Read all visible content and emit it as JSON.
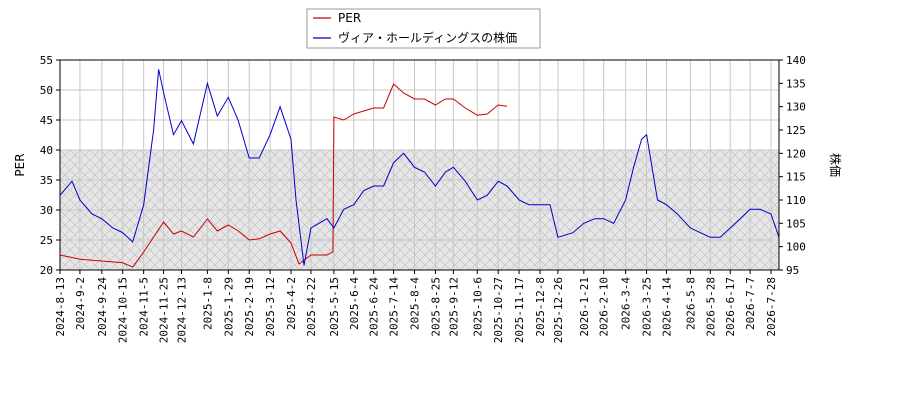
{
  "chart_data": {
    "type": "line",
    "legend": {
      "placement": "top-center",
      "entries": [
        {
          "name": "PER",
          "color": "#cc0000"
        },
        {
          "name": "ヴィア・ホールディングスの株価",
          "color": "#0000cc"
        }
      ]
    },
    "ylabel_left": "PER",
    "ylabel_right": "株価",
    "ylim_left": [
      20,
      55
    ],
    "ylim_right": [
      95,
      140
    ],
    "yticks_left": [
      "20",
      "25",
      "30",
      "35",
      "40",
      "45",
      "50",
      "55"
    ],
    "yticks_right": [
      "95",
      "100",
      "105",
      "110",
      "115",
      "120",
      "125",
      "130",
      "135",
      "140"
    ],
    "shaded_band_left": [
      20,
      40
    ],
    "grid": true,
    "x_dates": [
      "2024-8-13",
      "2024-9-2",
      "2024-9-24",
      "2024-10-15",
      "2024-11-5",
      "2024-11-25",
      "2024-12-13",
      "2025-1-8",
      "2025-1-29",
      "2025-2-19",
      "2025-3-12",
      "2025-4-2",
      "2025-4-22",
      "2025-5-15",
      "2025-6-4",
      "2025-6-24",
      "2025-7-14",
      "2025-8-4",
      "2025-8-25",
      "2025-9-12",
      "2025-10-6",
      "2025-10-27",
      "2025-11-17",
      "2025-12-8",
      "2025-12-26",
      "2026-1-21",
      "2026-2-10",
      "2026-3-4",
      "2026-3-25",
      "2026-4-14",
      "2026-5-8",
      "2026-5-28",
      "2026-6-17",
      "2026-7-7",
      "2026-7-28"
    ],
    "series": [
      {
        "name": "PER",
        "axis": "left",
        "color": "#cc0000",
        "x": [
          "2024-8-13",
          "2024-9-2",
          "2024-9-24",
          "2024-10-15",
          "2024-10-25",
          "2024-11-5",
          "2024-11-15",
          "2024-11-25",
          "2024-12-5",
          "2024-12-13",
          "2024-12-25",
          "2025-1-8",
          "2025-1-18",
          "2025-1-29",
          "2025-2-8",
          "2025-2-19",
          "2025-3-1",
          "2025-3-12",
          "2025-3-22",
          "2025-4-2",
          "2025-4-10",
          "2025-4-22",
          "2025-5-8",
          "2025-5-14",
          "2025-5-15",
          "2025-5-25",
          "2025-6-4",
          "2025-6-14",
          "2025-6-24",
          "2025-7-4",
          "2025-7-14",
          "2025-7-24",
          "2025-8-4",
          "2025-8-14",
          "2025-8-25",
          "2025-9-4",
          "2025-9-12",
          "2025-9-24",
          "2025-10-6",
          "2025-10-16",
          "2025-10-27",
          "2025-11-5"
        ],
        "values": [
          22.5,
          21.8,
          21.5,
          21.2,
          20.5,
          23.0,
          25.5,
          28.0,
          26.0,
          26.5,
          25.5,
          28.5,
          26.5,
          27.5,
          26.5,
          25.0,
          25.2,
          26.0,
          26.5,
          24.5,
          21.0,
          22.5,
          22.5,
          23.0,
          45.5,
          45.0,
          46.0,
          46.5,
          47.0,
          47.0,
          51.0,
          49.5,
          48.5,
          48.5,
          47.5,
          48.5,
          48.5,
          47.0,
          45.8,
          46.0,
          47.5,
          47.3
        ]
      },
      {
        "name": "ヴィア・ホールディングスの株価",
        "axis": "right",
        "color": "#0000cc",
        "x": [
          "2024-8-13",
          "2024-8-25",
          "2024-9-2",
          "2024-9-14",
          "2024-9-24",
          "2024-10-5",
          "2024-10-15",
          "2024-10-25",
          "2024-11-5",
          "2024-11-15",
          "2024-11-20",
          "2024-11-25",
          "2024-12-5",
          "2024-12-13",
          "2024-12-25",
          "2025-1-8",
          "2025-1-18",
          "2025-1-29",
          "2025-2-8",
          "2025-2-19",
          "2025-3-1",
          "2025-3-12",
          "2025-3-22",
          "2025-4-2",
          "2025-4-7",
          "2025-4-15",
          "2025-4-22",
          "2025-5-8",
          "2025-5-15",
          "2025-5-25",
          "2025-6-4",
          "2025-6-14",
          "2025-6-24",
          "2025-7-4",
          "2025-7-14",
          "2025-7-24",
          "2025-8-4",
          "2025-8-14",
          "2025-8-25",
          "2025-9-4",
          "2025-9-12",
          "2025-9-24",
          "2025-10-6",
          "2025-10-16",
          "2025-10-27",
          "2025-11-5",
          "2025-11-17",
          "2025-11-27",
          "2025-12-8",
          "2025-12-18",
          "2025-12-26",
          "2026-1-10",
          "2026-1-21",
          "2026-2-1",
          "2026-2-10",
          "2026-2-20",
          "2026-3-4",
          "2026-3-12",
          "2026-3-20",
          "2026-3-25",
          "2026-4-5",
          "2026-4-14",
          "2026-4-25",
          "2026-5-8",
          "2026-5-18",
          "2026-5-28",
          "2026-6-7",
          "2026-6-17",
          "2026-6-27",
          "2026-7-7",
          "2026-7-17",
          "2026-7-28",
          "2026-8-5"
        ],
        "values": [
          111,
          114,
          110,
          107,
          106,
          104,
          103,
          101,
          109,
          125,
          138,
          133,
          124,
          127,
          122,
          135,
          128,
          132,
          127,
          119,
          119,
          124,
          130,
          123,
          110,
          96,
          104,
          106,
          104,
          108,
          109,
          112,
          113,
          113,
          118,
          120,
          117,
          116,
          113,
          116,
          117,
          114,
          110,
          111,
          114,
          113,
          110,
          109,
          109,
          109,
          102,
          103,
          105,
          106,
          106,
          105,
          110,
          117,
          123,
          124,
          110,
          109,
          107,
          104,
          103,
          102,
          102,
          104,
          106,
          108,
          108,
          107,
          102
        ]
      }
    ]
  }
}
